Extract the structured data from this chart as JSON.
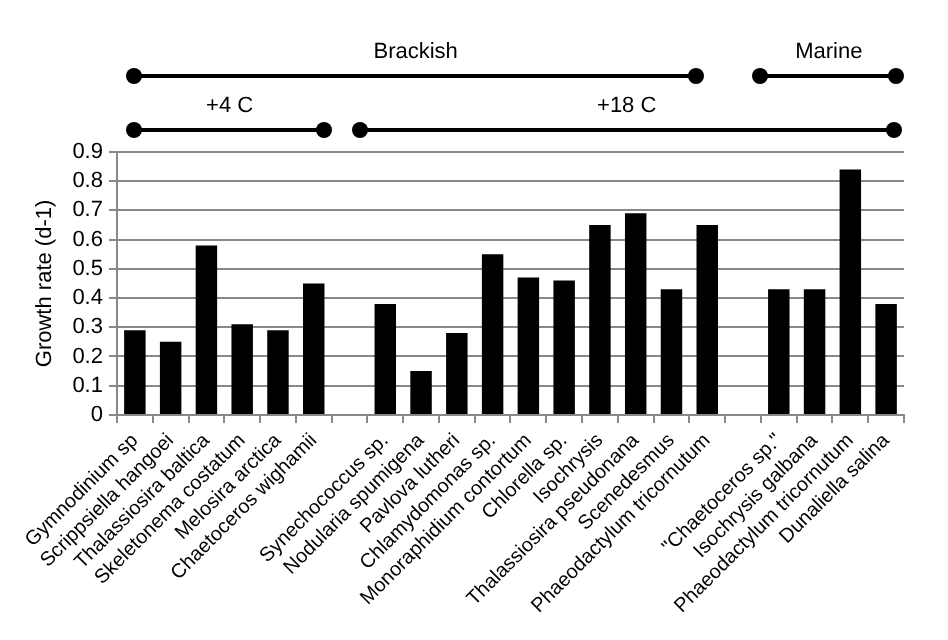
{
  "chart_data": {
    "type": "bar",
    "ylabel": "Growth rate (d-1)",
    "categories": [
      "Gymnodinium sp",
      "Scrippsiella hangoei",
      "Thalassiosira baltica",
      "Skeletonema costatum",
      "Melosira arctica",
      "Chaetoceros wighamii",
      null,
      "Synechococcus sp.",
      "Nodularia spumigena",
      "Pavlova lutheri",
      "Chlamydomonas sp.",
      "Monoraphidium contortum",
      "Chlorella sp.",
      "Isochrysis",
      "Thalassiosira pseudonana",
      "Scenedesmus",
      "Phaeodactylum tricornutum",
      null,
      "\"Chaetoceros sp.\"",
      "Isochrysis galbana",
      "Phaeodactylum tricornutum",
      "Dunaliella salina"
    ],
    "values": [
      0.29,
      0.25,
      0.58,
      0.31,
      0.29,
      0.45,
      null,
      0.38,
      0.15,
      0.28,
      0.55,
      0.47,
      0.46,
      0.65,
      0.69,
      0.43,
      0.65,
      null,
      0.43,
      0.43,
      0.84,
      0.38
    ],
    "color": "#000000",
    "ylim": [
      0,
      0.9
    ],
    "yticks": [
      0,
      0.1,
      0.2,
      0.3,
      0.4,
      0.5,
      0.6,
      0.7,
      0.8,
      0.9
    ],
    "grid": "y",
    "annotations": [
      "Brackish",
      "Marine",
      "+4 C",
      "+18 C"
    ]
  }
}
